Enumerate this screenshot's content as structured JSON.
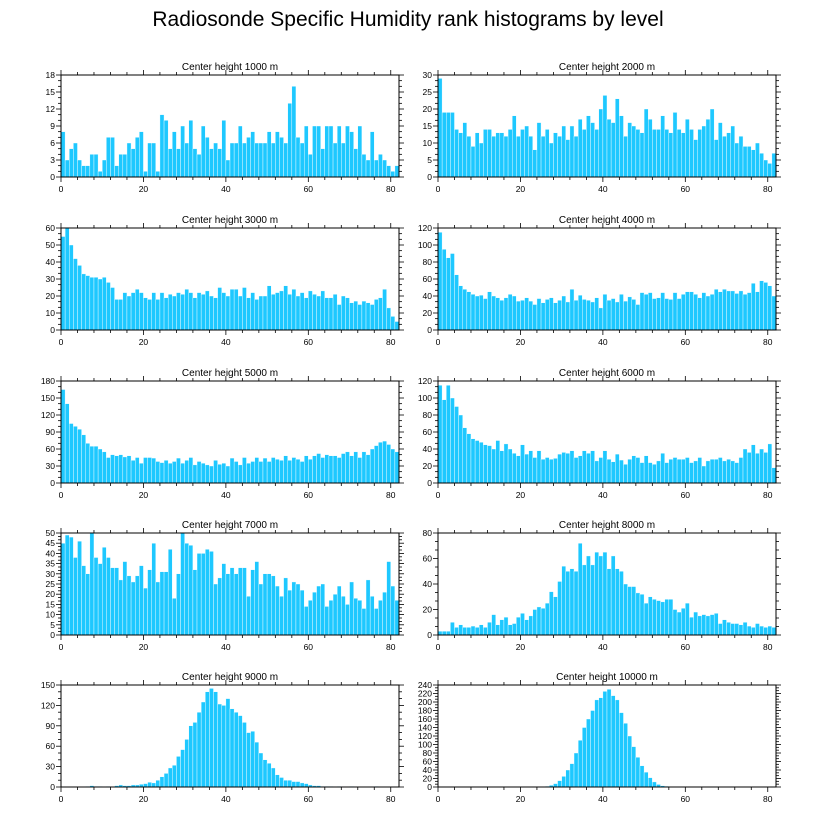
{
  "figure_title": "Radiosonde Specific Humidity rank histograms by level",
  "colors": {
    "bar_fill": "#1ec8ff",
    "bar_edge": "#ffffff",
    "axis": "#000000"
  },
  "chart_data": [
    {
      "type": "bar",
      "title": "Center height 1000 m",
      "xlabel": "",
      "ylabel": "",
      "xlim": [
        0,
        82
      ],
      "ylim": [
        0,
        18
      ],
      "xticks": [
        0,
        20,
        40,
        60,
        80
      ],
      "yticks": [
        0,
        3,
        6,
        9,
        12,
        15,
        18
      ],
      "values": [
        8,
        3,
        5,
        6,
        3,
        2,
        2,
        4,
        4,
        1,
        3,
        7,
        7,
        2,
        4,
        4,
        6,
        5,
        7,
        8,
        1,
        6,
        6,
        1,
        11,
        10,
        5,
        8,
        5,
        9,
        6,
        10,
        5,
        4,
        9,
        7,
        5,
        6,
        5,
        10,
        3,
        6,
        6,
        9,
        6,
        7,
        8,
        6,
        6,
        6,
        8,
        6,
        8,
        7,
        6,
        13,
        16,
        7,
        6,
        9,
        4,
        9,
        9,
        5,
        9,
        9,
        6,
        9,
        6,
        9,
        8,
        5,
        9,
        4,
        3,
        8,
        3,
        4,
        3,
        2,
        1,
        2
      ]
    },
    {
      "type": "bar",
      "title": "Center height 2000 m",
      "xlabel": "",
      "ylabel": "",
      "xlim": [
        0,
        82
      ],
      "ylim": [
        0,
        30
      ],
      "xticks": [
        0,
        20,
        40,
        60,
        80
      ],
      "yticks": [
        0,
        5,
        10,
        15,
        20,
        25,
        30
      ],
      "values": [
        29,
        19,
        19,
        19,
        14,
        13,
        16,
        12,
        9,
        13,
        10,
        14,
        14,
        12,
        13,
        13,
        12,
        14,
        18,
        12,
        14,
        15,
        12,
        8,
        16,
        12,
        14,
        10,
        13,
        12,
        15,
        11,
        15,
        12,
        17,
        14,
        18,
        16,
        14,
        20,
        24,
        17,
        16,
        23,
        18,
        12,
        16,
        15,
        14,
        13,
        20,
        17,
        14,
        14,
        18,
        14,
        13,
        19,
        14,
        13,
        17,
        14,
        11,
        14,
        15,
        17,
        20,
        11,
        16,
        12,
        13,
        15,
        10,
        12,
        9,
        9,
        8,
        10,
        7,
        5,
        4,
        7
      ]
    },
    {
      "type": "bar",
      "title": "Center height 3000 m",
      "xlabel": "",
      "ylabel": "",
      "xlim": [
        0,
        82
      ],
      "ylim": [
        0,
        60
      ],
      "xticks": [
        0,
        20,
        40,
        60,
        80
      ],
      "yticks": [
        0,
        10,
        20,
        30,
        40,
        50,
        60
      ],
      "values": [
        55,
        60,
        50,
        42,
        38,
        33,
        32,
        31,
        31,
        30,
        31,
        28,
        25,
        18,
        18,
        22,
        20,
        22,
        24,
        22,
        19,
        18,
        22,
        18,
        22,
        19,
        21,
        20,
        22,
        21,
        24,
        22,
        19,
        22,
        21,
        23,
        20,
        19,
        25,
        22,
        20,
        24,
        24,
        20,
        25,
        19,
        22,
        18,
        20,
        20,
        26,
        21,
        22,
        23,
        26,
        21,
        24,
        20,
        22,
        19,
        23,
        21,
        20,
        23,
        19,
        19,
        21,
        15,
        20,
        19,
        16,
        17,
        15,
        17,
        16,
        15,
        18,
        19,
        24,
        13,
        8,
        5
      ]
    },
    {
      "type": "bar",
      "title": "Center height 4000 m",
      "xlabel": "",
      "ylabel": "",
      "xlim": [
        0,
        82
      ],
      "ylim": [
        0,
        120
      ],
      "xticks": [
        0,
        20,
        40,
        60,
        80
      ],
      "yticks": [
        0,
        20,
        40,
        60,
        80,
        100,
        120
      ],
      "values": [
        115,
        95,
        85,
        90,
        65,
        52,
        48,
        45,
        42,
        40,
        41,
        37,
        45,
        40,
        38,
        35,
        38,
        42,
        40,
        34,
        35,
        38,
        34,
        30,
        37,
        32,
        36,
        38,
        32,
        35,
        40,
        33,
        48,
        35,
        41,
        36,
        35,
        33,
        38,
        26,
        42,
        35,
        37,
        33,
        42,
        34,
        39,
        36,
        30,
        44,
        42,
        44,
        37,
        38,
        44,
        37,
        36,
        44,
        37,
        42,
        45,
        45,
        42,
        38,
        44,
        40,
        42,
        48,
        45,
        48,
        46,
        46,
        43,
        46,
        42,
        44,
        55,
        45,
        58,
        56,
        52,
        40
      ]
    },
    {
      "type": "bar",
      "title": "Center height 5000 m",
      "xlabel": "",
      "ylabel": "",
      "xlim": [
        0,
        82
      ],
      "ylim": [
        0,
        180
      ],
      "xticks": [
        0,
        20,
        40,
        60,
        80
      ],
      "yticks": [
        0,
        30,
        60,
        90,
        120,
        150,
        180
      ],
      "values": [
        165,
        140,
        105,
        100,
        95,
        85,
        70,
        65,
        65,
        60,
        55,
        45,
        50,
        48,
        50,
        46,
        48,
        40,
        45,
        35,
        45,
        45,
        44,
        38,
        36,
        40,
        35,
        38,
        44,
        35,
        40,
        45,
        32,
        38,
        35,
        32,
        30,
        40,
        33,
        35,
        30,
        44,
        38,
        32,
        45,
        35,
        38,
        45,
        38,
        44,
        38,
        45,
        42,
        40,
        48,
        40,
        45,
        42,
        38,
        48,
        42,
        48,
        52,
        45,
        50,
        48,
        48,
        45,
        52,
        55,
        48,
        55,
        45,
        55,
        50,
        60,
        66,
        72,
        74,
        68,
        60,
        55
      ]
    },
    {
      "type": "bar",
      "title": "Center height 6000 m",
      "xlabel": "",
      "ylabel": "",
      "xlim": [
        0,
        82
      ],
      "ylim": [
        0,
        120
      ],
      "xticks": [
        0,
        20,
        40,
        60,
        80
      ],
      "yticks": [
        0,
        20,
        40,
        60,
        80,
        100,
        120
      ],
      "values": [
        115,
        98,
        115,
        100,
        90,
        80,
        65,
        58,
        52,
        50,
        48,
        45,
        44,
        40,
        50,
        38,
        46,
        40,
        35,
        32,
        45,
        34,
        38,
        30,
        38,
        28,
        30,
        28,
        29,
        34,
        36,
        35,
        38,
        30,
        32,
        38,
        35,
        38,
        26,
        30,
        38,
        28,
        25,
        34,
        27,
        22,
        28,
        32,
        30,
        24,
        32,
        24,
        22,
        26,
        35,
        24,
        28,
        30,
        28,
        28,
        30,
        24,
        26,
        30,
        20,
        26,
        28,
        28,
        30,
        26,
        28,
        26,
        24,
        30,
        40,
        36,
        45,
        35,
        40,
        36,
        46,
        18
      ]
    },
    {
      "type": "bar",
      "title": "Center height 7000 m",
      "xlabel": "",
      "ylabel": "",
      "xlim": [
        0,
        82
      ],
      "ylim": [
        0,
        50
      ],
      "xticks": [
        0,
        20,
        40,
        60,
        80
      ],
      "yticks": [
        0,
        5,
        10,
        15,
        20,
        25,
        30,
        35,
        40,
        45,
        50
      ],
      "values": [
        45,
        49,
        48,
        38,
        46,
        34,
        30,
        50,
        38,
        35,
        43,
        38,
        33,
        33,
        27,
        36,
        29,
        26,
        29,
        34,
        23,
        32,
        45,
        26,
        31,
        31,
        42,
        18,
        30,
        50,
        45,
        44,
        32,
        40,
        40,
        42,
        41,
        25,
        28,
        35,
        30,
        33,
        30,
        33,
        33,
        19,
        32,
        36,
        25,
        30,
        30,
        29,
        24,
        19,
        28,
        22,
        26,
        25,
        22,
        14,
        17,
        21,
        24,
        25,
        14,
        17,
        20,
        24,
        19,
        15,
        26,
        18,
        17,
        13,
        27,
        19,
        13,
        17,
        21,
        36,
        24,
        17
      ]
    },
    {
      "type": "bar",
      "title": "Center height 8000 m",
      "xlabel": "",
      "ylabel": "",
      "xlim": [
        0,
        82
      ],
      "ylim": [
        0,
        80
      ],
      "xticks": [
        0,
        20,
        40,
        60,
        80
      ],
      "yticks": [
        0,
        20,
        40,
        60,
        80
      ],
      "values": [
        3,
        3,
        3,
        10,
        6,
        8,
        6,
        6,
        7,
        6,
        8,
        6,
        10,
        16,
        8,
        12,
        14,
        8,
        9,
        14,
        17,
        12,
        15,
        20,
        22,
        21,
        25,
        34,
        30,
        42,
        54,
        50,
        52,
        50,
        72,
        55,
        62,
        55,
        65,
        62,
        65,
        52,
        62,
        52,
        50,
        40,
        38,
        38,
        33,
        32,
        25,
        30,
        28,
        27,
        26,
        28,
        28,
        20,
        18,
        21,
        25,
        14,
        18,
        15,
        16,
        15,
        16,
        17,
        9,
        12,
        10,
        9,
        9,
        8,
        10,
        7,
        6,
        9,
        7,
        6,
        7,
        6
      ]
    },
    {
      "type": "bar",
      "title": "Center height 9000 m",
      "xlabel": "",
      "ylabel": "",
      "xlim": [
        0,
        82
      ],
      "ylim": [
        0,
        150
      ],
      "xticks": [
        0,
        20,
        40,
        60,
        80
      ],
      "yticks": [
        0,
        30,
        60,
        90,
        120,
        150
      ],
      "values": [
        0,
        0,
        0,
        0,
        0,
        0,
        1,
        2,
        1,
        1,
        0,
        1,
        0,
        2,
        3,
        2,
        2,
        3,
        3,
        4,
        5,
        7,
        6,
        10,
        15,
        20,
        28,
        32,
        45,
        55,
        70,
        90,
        95,
        110,
        125,
        140,
        145,
        140,
        122,
        120,
        130,
        115,
        110,
        105,
        95,
        80,
        82,
        66,
        50,
        40,
        35,
        28,
        18,
        14,
        10,
        10,
        8,
        8,
        6,
        5,
        3,
        2,
        2,
        1,
        1,
        1,
        0,
        1,
        0,
        0,
        1,
        0,
        0,
        0,
        0,
        0,
        1,
        0,
        0,
        0,
        0,
        0
      ]
    },
    {
      "type": "bar",
      "title": "Center height 10000 m",
      "xlabel": "",
      "ylabel": "",
      "xlim": [
        0,
        82
      ],
      "ylim": [
        0,
        240
      ],
      "xticks": [
        0,
        20,
        40,
        60,
        80
      ],
      "yticks": [
        0,
        20,
        40,
        60,
        80,
        100,
        120,
        140,
        160,
        180,
        200,
        220,
        240
      ],
      "values": [
        0,
        0,
        0,
        0,
        0,
        0,
        0,
        0,
        0,
        0,
        0,
        0,
        0,
        0,
        0,
        0,
        0,
        0,
        0,
        0,
        0,
        0,
        0,
        0,
        0,
        1,
        2,
        4,
        8,
        15,
        25,
        40,
        55,
        80,
        110,
        140,
        160,
        180,
        205,
        210,
        225,
        230,
        215,
        205,
        175,
        150,
        120,
        95,
        70,
        50,
        35,
        22,
        12,
        6,
        3,
        2,
        1,
        1,
        0,
        0,
        0,
        0,
        0,
        0,
        0,
        0,
        0,
        0,
        0,
        0,
        0,
        0,
        0,
        0,
        0,
        0,
        0,
        0,
        0,
        0,
        0,
        0
      ]
    }
  ]
}
